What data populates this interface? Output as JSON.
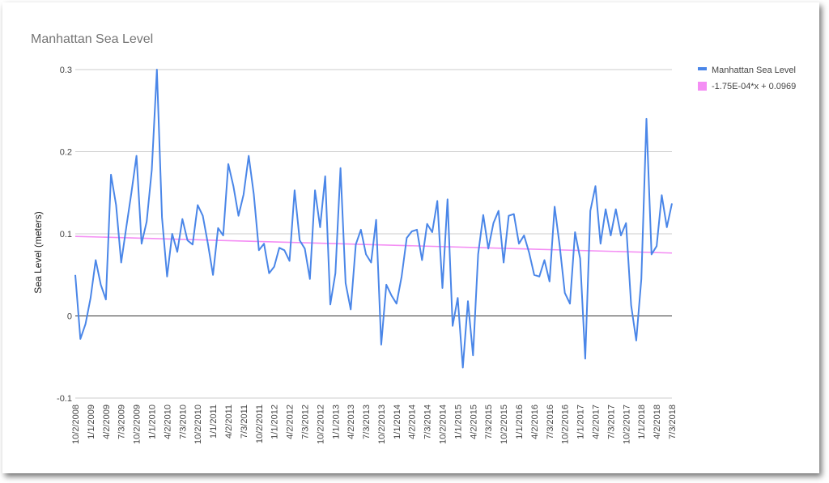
{
  "chart_data": {
    "type": "line",
    "title": "Manhattan Sea Level",
    "xlabel": "",
    "ylabel": "Sea Level (meters)",
    "ylim": [
      -0.1,
      0.3
    ],
    "yticks": [
      "-0.1",
      "0",
      "0.1",
      "0.2",
      "0.3"
    ],
    "grid": true,
    "legend_position": "right",
    "x_tick_labels": [
      "10/2/2008",
      "1/1/2009",
      "4/2/2009",
      "7/3/2009",
      "10/2/2009",
      "1/1/2010",
      "4/2/2010",
      "7/3/2010",
      "10/2/2010",
      "1/1/2011",
      "4/2/2011",
      "7/3/2011",
      "10/2/2011",
      "1/1/2012",
      "4/2/2012",
      "7/3/2012",
      "10/2/2012",
      "1/1/2013",
      "4/2/2013",
      "7/3/2013",
      "10/2/2013",
      "1/1/2014",
      "4/2/2014",
      "7/3/2014",
      "10/2/2014",
      "1/1/2015",
      "4/2/2015",
      "7/3/2015",
      "10/2/2015",
      "1/1/2016",
      "4/2/2016",
      "7/3/2016",
      "10/2/2016",
      "1/1/2017",
      "4/2/2017",
      "7/3/2017",
      "10/2/2017",
      "1/1/2018",
      "4/2/2018",
      "7/3/2018"
    ],
    "series": [
      {
        "name": "Manhattan Sea Level",
        "color": "#4a86e8",
        "values": [
          0.05,
          -0.028,
          -0.01,
          0.022,
          0.068,
          0.038,
          0.02,
          0.172,
          0.135,
          0.065,
          0.108,
          0.15,
          0.195,
          0.088,
          0.115,
          0.178,
          0.3,
          0.12,
          0.048,
          0.1,
          0.078,
          0.118,
          0.092,
          0.087,
          0.135,
          0.122,
          0.088,
          0.05,
          0.107,
          0.098,
          0.185,
          0.158,
          0.122,
          0.148,
          0.195,
          0.148,
          0.08,
          0.088,
          0.052,
          0.06,
          0.083,
          0.08,
          0.067,
          0.153,
          0.092,
          0.082,
          0.045,
          0.153,
          0.108,
          0.17,
          0.014,
          0.052,
          0.18,
          0.04,
          0.008,
          0.087,
          0.105,
          0.075,
          0.065,
          0.117,
          -0.035,
          0.038,
          0.025,
          0.015,
          0.048,
          0.095,
          0.103,
          0.105,
          0.068,
          0.112,
          0.102,
          0.14,
          0.034,
          0.142,
          -0.012,
          0.022,
          -0.063,
          0.018,
          -0.048,
          0.075,
          0.123,
          0.082,
          0.113,
          0.128,
          0.065,
          0.122,
          0.124,
          0.088,
          0.098,
          0.077,
          0.05,
          0.048,
          0.068,
          0.042,
          0.133,
          0.085,
          0.028,
          0.015,
          0.102,
          0.07,
          -0.052,
          0.128,
          0.158,
          0.088,
          0.13,
          0.098,
          0.13,
          0.098,
          0.113,
          0.013,
          -0.03,
          0.045,
          0.24,
          0.075,
          0.085,
          0.147,
          0.108,
          0.137
        ]
      },
      {
        "name": "-1.75E-04*x + 0.0969",
        "color": "#f48ef4",
        "trendline": true,
        "values": [
          0.0969,
          0.0766
        ]
      }
    ]
  }
}
